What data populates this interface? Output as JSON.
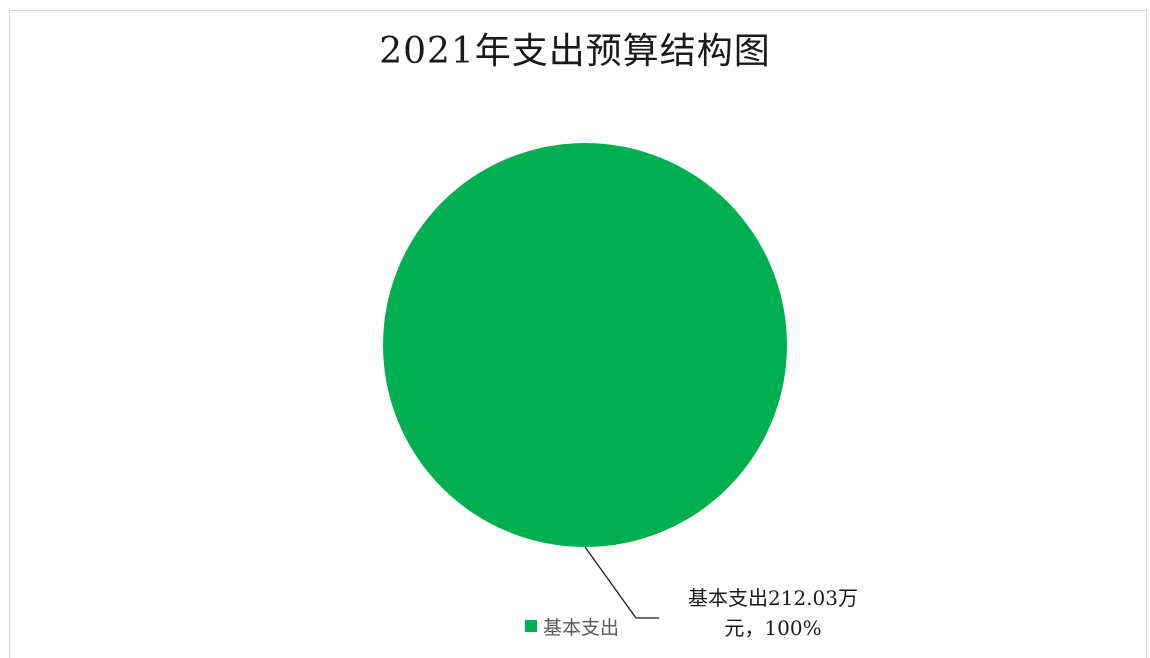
{
  "chart_data": {
    "type": "pie",
    "title": "2021年支出预算结构图",
    "slices": [
      {
        "label": "基本支出",
        "value": 212.03,
        "unit": "万元",
        "percent": 100,
        "color": "#00b050"
      }
    ],
    "data_labels": [
      "基本支出212.03万",
      "元，100%"
    ],
    "legend": {
      "placement": "bottom",
      "entries": [
        "基本支出"
      ]
    }
  }
}
